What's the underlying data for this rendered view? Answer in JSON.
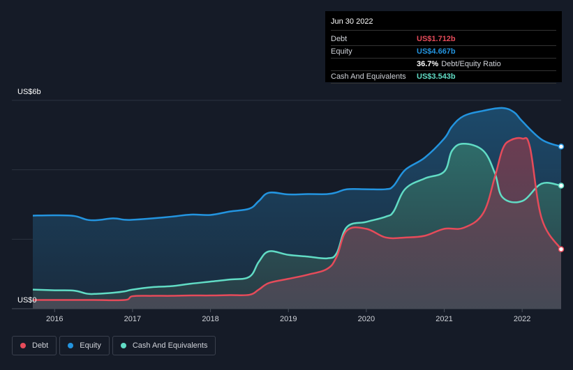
{
  "chart_data": {
    "type": "area",
    "title": "",
    "xlabel": "",
    "ylabel": "",
    "y_axis_labels": {
      "top": "US$6b",
      "bottom": "US$0"
    },
    "ylim": [
      0,
      6
    ],
    "xlim": [
      2015.7,
      2022.5
    ],
    "x_ticks": [
      {
        "value": 2016,
        "label": "2016"
      },
      {
        "value": 2017,
        "label": "2017"
      },
      {
        "value": 2018,
        "label": "2018"
      },
      {
        "value": 2019,
        "label": "2019"
      },
      {
        "value": 2020,
        "label": "2020"
      },
      {
        "value": 2021,
        "label": "2021"
      },
      {
        "value": 2022,
        "label": "2022"
      }
    ],
    "gridlines_y": [
      0,
      2,
      4,
      6
    ],
    "grid": true,
    "series": [
      {
        "name": "Equity",
        "color": "#2394df",
        "fill": "#1f4562",
        "x": [
          2015.72,
          2016.0,
          2016.25,
          2016.42,
          2016.55,
          2016.75,
          2016.9,
          2017.0,
          2017.2,
          2017.5,
          2017.75,
          2018.0,
          2018.25,
          2018.5,
          2018.62,
          2018.75,
          2019.0,
          2019.25,
          2019.5,
          2019.62,
          2019.75,
          2020.0,
          2020.25,
          2020.35,
          2020.5,
          2020.75,
          2021.0,
          2021.1,
          2021.25,
          2021.5,
          2021.75,
          2021.9,
          2022.0,
          2022.25,
          2022.5
        ],
        "values": [
          2.68,
          2.69,
          2.67,
          2.56,
          2.55,
          2.6,
          2.56,
          2.56,
          2.59,
          2.65,
          2.71,
          2.7,
          2.8,
          2.88,
          3.1,
          3.34,
          3.29,
          3.3,
          3.3,
          3.35,
          3.44,
          3.44,
          3.44,
          3.54,
          4.0,
          4.35,
          4.9,
          5.25,
          5.55,
          5.7,
          5.78,
          5.65,
          5.4,
          4.87,
          4.667
        ]
      },
      {
        "name": "Cash And Equivalents",
        "color": "#61dcc5",
        "fill": "#2d5e5c",
        "x": [
          2015.72,
          2016.0,
          2016.25,
          2016.42,
          2016.55,
          2016.75,
          2016.9,
          2017.0,
          2017.25,
          2017.5,
          2017.75,
          2018.0,
          2018.25,
          2018.5,
          2018.62,
          2018.75,
          2019.0,
          2019.25,
          2019.5,
          2019.62,
          2019.75,
          2020.0,
          2020.25,
          2020.35,
          2020.5,
          2020.75,
          2021.0,
          2021.1,
          2021.25,
          2021.5,
          2021.65,
          2021.75,
          2022.0,
          2022.25,
          2022.5
        ],
        "values": [
          0.55,
          0.53,
          0.52,
          0.43,
          0.43,
          0.46,
          0.5,
          0.55,
          0.62,
          0.65,
          0.72,
          0.78,
          0.84,
          0.92,
          1.35,
          1.65,
          1.55,
          1.5,
          1.45,
          1.6,
          2.35,
          2.5,
          2.65,
          2.8,
          3.45,
          3.75,
          3.95,
          4.55,
          4.75,
          4.55,
          3.9,
          3.2,
          3.1,
          3.6,
          3.543
        ]
      },
      {
        "name": "Debt",
        "color": "#e64b5a",
        "fill": "#5a3a46",
        "x": [
          2015.72,
          2016.0,
          2016.5,
          2016.9,
          2017.0,
          2017.25,
          2017.5,
          2017.75,
          2018.0,
          2018.25,
          2018.5,
          2018.62,
          2018.75,
          2019.0,
          2019.25,
          2019.5,
          2019.62,
          2019.75,
          2020.0,
          2020.25,
          2020.5,
          2020.75,
          2021.0,
          2021.25,
          2021.5,
          2021.65,
          2021.75,
          2021.85,
          2022.0,
          2022.1,
          2022.25,
          2022.5
        ],
        "values": [
          0.25,
          0.25,
          0.25,
          0.25,
          0.36,
          0.37,
          0.37,
          0.38,
          0.38,
          0.39,
          0.4,
          0.55,
          0.74,
          0.86,
          0.98,
          1.15,
          1.5,
          2.25,
          2.3,
          2.05,
          2.05,
          2.1,
          2.3,
          2.33,
          2.75,
          3.8,
          4.6,
          4.85,
          4.9,
          4.65,
          2.6,
          1.712
        ]
      }
    ]
  },
  "tooltip": {
    "date": "Jun 30 2022",
    "rows": [
      {
        "label": "Debt",
        "value": "US$1.712b",
        "color": "#e64b5a"
      },
      {
        "label": "Equity",
        "value": "US$4.667b",
        "color": "#2394df"
      },
      {
        "label": "",
        "value": "36.7%",
        "suffix": "Debt/Equity Ratio",
        "color": "#ffffff"
      },
      {
        "label": "Cash And Equivalents",
        "value": "US$3.543b",
        "color": "#61dcc5"
      }
    ]
  },
  "legend": [
    {
      "label": "Debt",
      "color": "#e64b5a"
    },
    {
      "label": "Equity",
      "color": "#2394df"
    },
    {
      "label": "Cash And Equivalents",
      "color": "#61dcc5"
    }
  ]
}
